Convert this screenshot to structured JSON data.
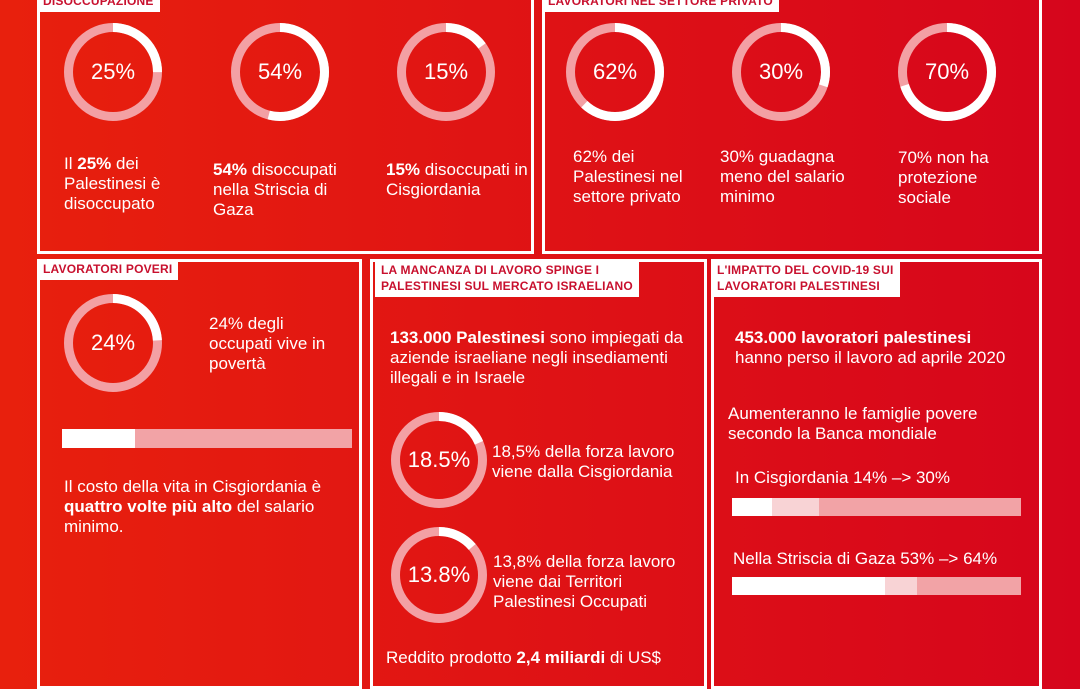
{
  "colors": {
    "ring_light": "#f3a0a4",
    "ring_fill": "#ffffff",
    "tag_text": "#c8102e",
    "bar_track": "#f2a3a6",
    "bar_mid": "#f8d3d5",
    "bar_fill": "#ffffff"
  },
  "p1": {
    "tag": "DISOCCUPAZIONE",
    "d1": {
      "value": 25,
      "label": "25%"
    },
    "d2": {
      "value": 54,
      "label": "54%"
    },
    "d3": {
      "value": 15,
      "label": "15%"
    },
    "t1": {
      "pre": "Il ",
      "bold": "25%",
      "post": " dei Palestinesi è disoccupato"
    },
    "t2": {
      "bold": "54%",
      "post": " disoccupati nella Striscia di Gaza"
    },
    "t3": {
      "bold": "15%",
      "post": " disoccupati in Cisgiordania"
    }
  },
  "p2": {
    "tag": "LAVORATORI NEL SETTORE PRIVATO",
    "d1": {
      "value": 62,
      "label": "62%"
    },
    "d2": {
      "value": 30,
      "label": "30%"
    },
    "d3": {
      "value": 70,
      "label": "70%"
    },
    "t1": "62% dei Palestinesi nel settore privato",
    "t2": "30% guadagna meno del salario minimo",
    "t3": "70% non ha protezione sociale"
  },
  "p3": {
    "tag": "LAVORATORI POVERI",
    "d1": {
      "value": 24,
      "label": "24%"
    },
    "t1": "24% degli occupati vive in povertà",
    "bar": {
      "fill": 0.25
    },
    "t2": {
      "pre": "Il costo della vita in Cisgiordania è ",
      "bold": "quattro volte più alto",
      "post": " del salario minimo."
    }
  },
  "p4": {
    "tag": "LA MANCANZA DI LAVORO SPINGE I\nPALESTINESI SUL MERCATO ISRAELIANO",
    "t1": {
      "bold": "133.000 Palestinesi",
      "post": " sono impiegati da aziende israeliane negli insediamenti illegali e in Israele"
    },
    "d1": {
      "value": 18.5,
      "label": "18.5%"
    },
    "t2": "18,5% della forza lavoro viene dalla Cisgiordania",
    "d2": {
      "value": 13.8,
      "label": "13.8%"
    },
    "t3": "13,8% della forza lavoro viene dai Territori Palestinesi Occupati",
    "t4": {
      "pre": "Reddito prodotto ",
      "bold": "2,4 miliardi",
      "post": " di US$"
    }
  },
  "p5": {
    "tag": "L'IMPATTO DEL COVID-19  SUI\nLAVORATORI PALESTINESI",
    "t1": {
      "bold": "453.000 lavoratori palestinesi",
      "post": " hanno perso il lavoro ad aprile 2020"
    },
    "t2": "Aumenteranno le famiglie povere secondo la Banca mondiale",
    "t3": "In Cisgiordania 14% –> 30%",
    "bar1": {
      "from": 0.14,
      "to": 0.3
    },
    "t4": "Nella Striscia di Gaza 53% –> 64%",
    "bar2": {
      "from": 0.53,
      "to": 0.64
    }
  }
}
